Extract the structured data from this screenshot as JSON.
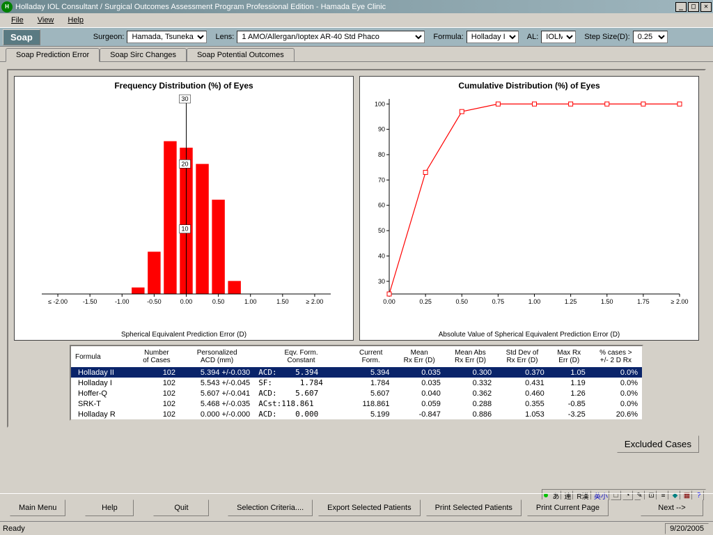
{
  "window": {
    "title": "Holladay IOL Consultant / Surgical Outcomes Assessment Program Professional Edition - Hamada Eye Clinic"
  },
  "menu": {
    "file": "File",
    "view": "View",
    "help": "Help"
  },
  "toolbar": {
    "soap": "Soap",
    "surgeon_lbl": "Surgeon:",
    "surgeon": "Hamada, Tsunekazu",
    "lens_lbl": "Lens:",
    "lens": "1  AMO/Allergan/Ioptex AR-40            Std Phaco",
    "formula_lbl": "Formula:",
    "formula": "Holladay II",
    "al_lbl": "AL:",
    "al": "IOLM",
    "step_lbl": "Step Size(D):",
    "step": "0.25"
  },
  "tabs": {
    "t1": "Soap Prediction Error",
    "t2": "Soap Sirc Changes",
    "t3": "Soap Potential Outcomes"
  },
  "chart1": {
    "title": "Frequency Distribution (%) of Eyes",
    "xlabel": "Spherical Equivalent Prediction Error (D)",
    "type": "bar",
    "bar_color": "#ff0000",
    "axis_color": "#000000",
    "bg": "#ffffff",
    "xticks": [
      "≤ -2.00",
      "-1.50",
      "-1.00",
      "-0.50",
      "0.00",
      "0.50",
      "1.00",
      "1.50",
      "≥ 2.00"
    ],
    "yticks": [
      10,
      20,
      30
    ],
    "ylim": [
      0,
      30
    ],
    "xlim": [
      -2.25,
      2.25
    ],
    "bars": [
      {
        "x": -0.75,
        "y": 1.0
      },
      {
        "x": -0.5,
        "y": 6.5
      },
      {
        "x": -0.25,
        "y": 23.5
      },
      {
        "x": 0.0,
        "y": 22.5
      },
      {
        "x": 0.25,
        "y": 20.0
      },
      {
        "x": 0.5,
        "y": 14.5
      },
      {
        "x": 0.75,
        "y": 2.0
      }
    ],
    "bar_width": 0.2
  },
  "chart2": {
    "title": "Cumulative Distribution (%) of Eyes",
    "xlabel": "Absolute Value of Spherical Equivalent Prediction Error (D)",
    "type": "line",
    "line_color": "#ff0000",
    "marker": "square-open",
    "bg": "#ffffff",
    "xticks": [
      "0.00",
      "0.25",
      "0.50",
      "0.75",
      "1.00",
      "1.25",
      "1.50",
      "1.75",
      "≥ 2.00"
    ],
    "yticks": [
      30,
      40,
      50,
      60,
      70,
      80,
      90,
      100
    ],
    "ylim": [
      25,
      102
    ],
    "points": [
      {
        "x": 0.0,
        "y": 25
      },
      {
        "x": 0.25,
        "y": 73
      },
      {
        "x": 0.5,
        "y": 97
      },
      {
        "x": 0.75,
        "y": 100
      },
      {
        "x": 1.0,
        "y": 100
      },
      {
        "x": 1.25,
        "y": 100
      },
      {
        "x": 1.5,
        "y": 100
      },
      {
        "x": 1.75,
        "y": 100
      },
      {
        "x": 2.0,
        "y": 100
      }
    ]
  },
  "table": {
    "headers": [
      "Formula",
      "Number\nof Cases",
      "Personalized\nACD (mm)",
      "Eqv. Form.\nConstant",
      "Current\nForm.",
      "Mean\nRx Err (D)",
      "Mean Abs\nRx Err (D)",
      "Std Dev of\nRx Err (D)",
      "Max Rx\nErr (D)",
      "% cases >\n+/- 2 D Rx"
    ],
    "rows": [
      {
        "sel": true,
        "c": [
          "Holladay II",
          "102",
          "5.394 +/-0.030",
          "ACD:    5.394",
          "5.394",
          "0.035",
          "0.300",
          "0.370",
          "1.05",
          "0.0%"
        ]
      },
      {
        "sel": false,
        "c": [
          "Holladay I",
          "102",
          "5.543 +/-0.045",
          "SF:      1.784",
          "1.784",
          "0.035",
          "0.332",
          "0.431",
          "1.19",
          "0.0%"
        ]
      },
      {
        "sel": false,
        "c": [
          "Hoffer-Q",
          "102",
          "5.607 +/-0.041",
          "ACD:    5.607",
          "5.607",
          "0.040",
          "0.362",
          "0.460",
          "1.26",
          "0.0%"
        ]
      },
      {
        "sel": false,
        "c": [
          "SRK-T",
          "102",
          "5.468 +/-0.035",
          "ACst:118.861",
          "118.861",
          "0.059",
          "0.288",
          "0.355",
          "-0.85",
          "0.0%"
        ]
      },
      {
        "sel": false,
        "c": [
          "Holladay R",
          "102",
          "0.000 +/-0.000",
          "ACD:    0.000",
          "5.199",
          "-0.847",
          "0.886",
          "1.053",
          "-3.25",
          "20.6%"
        ]
      }
    ],
    "selected_bg": "#0a246a",
    "selected_fg": "#ffffff"
  },
  "buttons": {
    "excluded": "Excluded Cases",
    "mainmenu": "Main Menu",
    "help": "Help",
    "quit": "Quit",
    "selcrit": "Selection Criteria....",
    "export": "Export Selected Patients",
    "print_sel": "Print Selected Patients",
    "print_page": "Print Current Page",
    "next": "Next -->"
  },
  "status": {
    "ready": "Ready",
    "date": "9/20/2005"
  },
  "tray": {
    "items": [
      "あ",
      "連",
      "R漢",
      "英小",
      "□",
      "◔",
      "✎",
      "⊡",
      "≡",
      "◆",
      "▦",
      "?"
    ],
    "green_dot_color": "#00c000"
  }
}
